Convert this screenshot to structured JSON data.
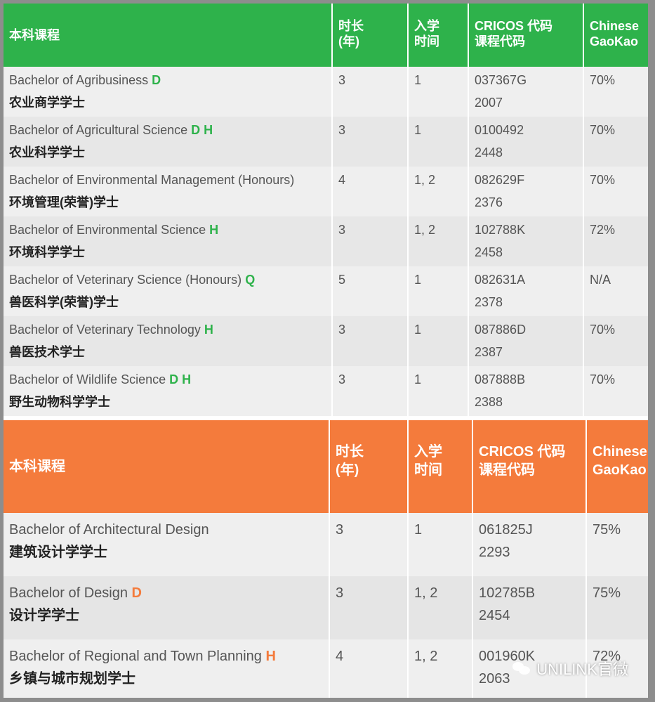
{
  "table_green": {
    "headers": [
      "本科课程",
      "时长\n(年)",
      "入学\n时间",
      "CRICOS 代码\n课程代码",
      "Chinese\nGaoKao"
    ],
    "rows": [
      {
        "en": "Bachelor of Agribusiness",
        "tag": "D",
        "cn": "农业商学学士",
        "duration": "3",
        "intake": "1",
        "cricos": "037367G",
        "code": "2007",
        "gaokao": "70%"
      },
      {
        "en": "Bachelor of Agricultural Science",
        "tag": "D H",
        "cn": "农业科学学士",
        "duration": "3",
        "intake": "1",
        "cricos": "0100492",
        "code": "2448",
        "gaokao": "70%"
      },
      {
        "en": "Bachelor of Environmental Management (Honours)",
        "tag": "",
        "cn": "环境管理(荣誉)学士",
        "duration": "4",
        "intake": "1, 2",
        "cricos": "082629F",
        "code": "2376",
        "gaokao": "70%"
      },
      {
        "en": "Bachelor of Environmental Science",
        "tag": "H",
        "cn": "环境科学学士",
        "duration": "3",
        "intake": "1, 2",
        "cricos": "102788K",
        "code": "2458",
        "gaokao": "72%"
      },
      {
        "en": "Bachelor of Veterinary Science (Honours)",
        "tag": "Q",
        "cn": "兽医科学(荣誉)学士",
        "duration": "5",
        "intake": "1",
        "cricos": "082631A",
        "code": "2378",
        "gaokao": "N/A"
      },
      {
        "en": "Bachelor of Veterinary Technology",
        "tag": "H",
        "cn": "兽医技术学士",
        "duration": "3",
        "intake": "1",
        "cricos": "087886D",
        "code": "2387",
        "gaokao": "70%"
      },
      {
        "en": "Bachelor of Wildlife Science",
        "tag": "D H",
        "cn": "野生动物科学学士",
        "duration": "3",
        "intake": "1",
        "cricos": "087888B",
        "code": "2388",
        "gaokao": "70%"
      }
    ]
  },
  "table_orange": {
    "headers": [
      "本科课程",
      "时长\n(年)",
      "入学\n时间",
      "CRICOS 代码\n课程代码",
      "Chinese\nGaoKao"
    ],
    "rows": [
      {
        "en": "Bachelor of Architectural Design",
        "tag": "",
        "cn": "建筑设计学学士",
        "duration": "3",
        "intake": "1",
        "cricos": "061825J",
        "code": "2293",
        "gaokao": "75%"
      },
      {
        "en": "Bachelor of Design",
        "tag": "D",
        "cn": "设计学学士",
        "duration": "3",
        "intake": "1, 2",
        "cricos": "102785B",
        "code": "2454",
        "gaokao": "75%"
      },
      {
        "en": "Bachelor of Regional and Town Planning",
        "tag": "H",
        "cn": "乡镇与城市规划学士",
        "duration": "4",
        "intake": "1, 2",
        "cricos": "001960K",
        "code": "2063",
        "gaokao": "72%"
      }
    ]
  },
  "watermark": {
    "text": "UNILINK官微"
  },
  "colors": {
    "green": "#2eb24b",
    "orange": "#f47b3c"
  }
}
